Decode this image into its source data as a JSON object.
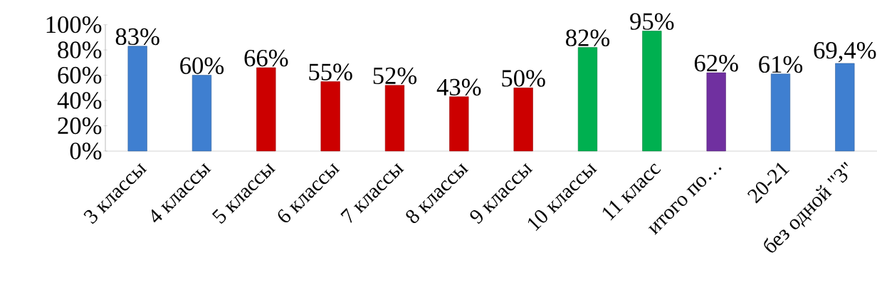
{
  "chart_data": {
    "type": "bar",
    "categories": [
      "3 классы",
      "4 классы",
      "5 классы",
      "6 классы",
      "7 классы",
      "8 классы",
      "9 классы",
      "10 классы",
      "11 класс",
      "итого по…",
      "20-21",
      "без одной \"3\""
    ],
    "values": [
      83,
      60,
      66,
      55,
      52,
      43,
      50,
      82,
      95,
      62,
      61,
      69.4
    ],
    "colors": [
      "#3f7fd0",
      "#3f7fd0",
      "#cc0000",
      "#cc0000",
      "#cc0000",
      "#cc0000",
      "#cc0000",
      "#00b050",
      "#00b050",
      "#7030a0",
      "#3f7fd0",
      "#3f7fd0"
    ],
    "value_labels": [
      "83%",
      "60%",
      "66%",
      "55%",
      "52%",
      "43%",
      "50%",
      "82%",
      "95%",
      "62%",
      "61%",
      "69,4%"
    ],
    "ylim": [
      0,
      100
    ],
    "yticks": [
      {
        "value": 0,
        "label": "0%"
      },
      {
        "value": 20,
        "label": "20%"
      },
      {
        "value": 40,
        "label": "40%"
      },
      {
        "value": 60,
        "label": "60%"
      },
      {
        "value": 80,
        "label": "80%"
      },
      {
        "value": 100,
        "label": "100%"
      }
    ]
  }
}
